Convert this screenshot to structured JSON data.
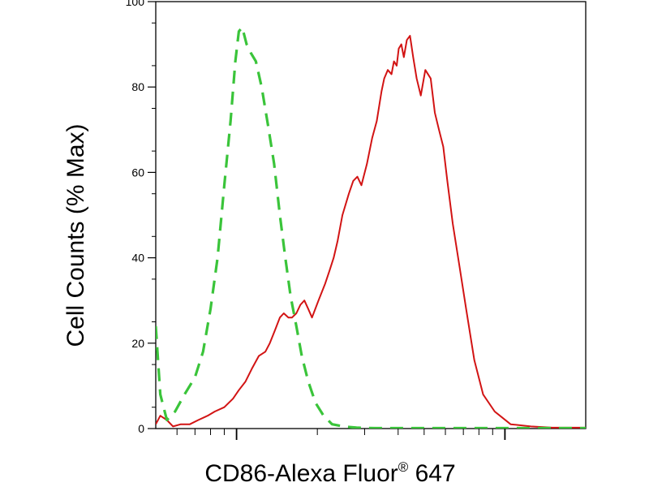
{
  "chart_data": {
    "type": "line",
    "title": "",
    "xlabel": "CD86-Alexa Fluor",
    "xlabel_mark": "®",
    "xlabel_suffix": " 647",
    "ylabel": "Cell Counts (% Max)",
    "xscale": "log",
    "xlim": [
      0.5,
      20
    ],
    "ylim": [
      0,
      100
    ],
    "yticks": [
      0,
      20,
      40,
      60,
      80,
      100
    ],
    "x_decades": [
      1,
      10
    ],
    "grid": false,
    "series": [
      {
        "color": "#d21414",
        "style": "solid",
        "x": [
          0.5,
          0.52,
          0.55,
          0.58,
          0.62,
          0.67,
          0.72,
          0.78,
          0.83,
          0.9,
          0.97,
          1.02,
          1.08,
          1.14,
          1.21,
          1.28,
          1.33,
          1.39,
          1.45,
          1.5,
          1.56,
          1.61,
          1.67,
          1.73,
          1.79,
          1.85,
          1.91,
          2.02,
          2.14,
          2.22,
          2.3,
          2.38,
          2.48,
          2.62,
          2.72,
          2.82,
          2.92,
          3.06,
          3.2,
          3.33,
          3.47,
          3.55,
          3.66,
          3.78,
          3.86,
          3.95,
          4.02,
          4.11,
          4.2,
          4.31,
          4.43,
          4.55,
          4.69,
          4.86,
          5.05,
          5.29,
          5.48,
          5.68,
          5.89,
          6.1,
          6.39,
          6.77,
          7.17,
          7.69,
          8.29,
          9.16,
          10.5,
          12.5,
          15.0,
          20.0
        ],
        "y": [
          1,
          3,
          2,
          0.5,
          1,
          1,
          2,
          3,
          4,
          5,
          7,
          9,
          11,
          14,
          17,
          18,
          20,
          23,
          26,
          27,
          26,
          26,
          27,
          29,
          30,
          28,
          26,
          30,
          34,
          37,
          40,
          44,
          50,
          55,
          58,
          59,
          57,
          62,
          68,
          72,
          79,
          82,
          84,
          83,
          86,
          85,
          89,
          90,
          87,
          91,
          92,
          87,
          82,
          78,
          84,
          82,
          74,
          70,
          66,
          58,
          48,
          38,
          28,
          16,
          8,
          4,
          1,
          0.5,
          0.2,
          0.2
        ]
      },
      {
        "color": "#3ac43a",
        "style": "dashed",
        "x": [
          0.5,
          0.52,
          0.55,
          0.59,
          0.64,
          0.7,
          0.75,
          0.8,
          0.85,
          0.9,
          0.95,
          0.99,
          1.02,
          1.05,
          1.09,
          1.13,
          1.18,
          1.24,
          1.31,
          1.38,
          1.45,
          1.52,
          1.59,
          1.67,
          1.75,
          1.85,
          1.97,
          2.11,
          2.27,
          2.5,
          2.8,
          3.3,
          4.5,
          20.0
        ],
        "y": [
          24,
          8,
          2,
          4,
          8,
          12,
          18,
          28,
          40,
          57,
          72,
          86,
          93,
          94,
          90,
          88,
          86,
          80,
          71,
          62,
          50,
          40,
          31,
          24,
          17,
          11,
          6,
          3,
          1,
          0.5,
          0.2,
          0.1,
          0.1,
          0.1
        ]
      }
    ]
  }
}
